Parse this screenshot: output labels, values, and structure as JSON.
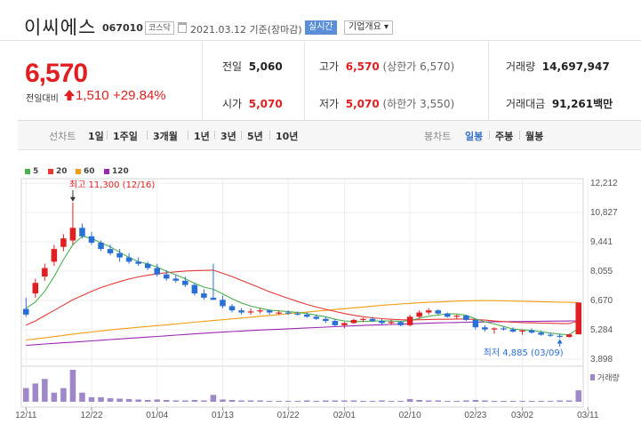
{
  "header": {
    "name": "이씨에스",
    "code": "067010",
    "market": "코스닥",
    "date": "2021.03.12 기준(장마감)",
    "realtime_label": "실시간",
    "overview_label": "기업개요 ▾"
  },
  "price": {
    "current": "6,570",
    "change_label": "전일대비",
    "change_value": "1,510",
    "change_pct": "+29.84%"
  },
  "stats": {
    "prev_close_label": "전일",
    "prev_close": "5,060",
    "high_label": "고가",
    "high": "6,570",
    "high_sub": "(상한가 6,570)",
    "volume_label": "거래량",
    "volume": "14,697,947",
    "open_label": "시가",
    "open": "5,070",
    "low_label": "저가",
    "low": "5,070",
    "low_sub": "(하한가 3,550)",
    "amount_label": "거래대금",
    "amount": "91,261",
    "amount_unit": "백만"
  },
  "period_bar": {
    "line_label": "선차트",
    "line_periods": [
      "1일",
      "1주일",
      "3개월",
      "1년",
      "3년",
      "5년",
      "10년"
    ],
    "candle_label": "봉차트",
    "candle_periods": [
      "일봉",
      "주봉",
      "월봉"
    ],
    "active_candle": "일봉"
  },
  "colors": {
    "up": "#e01f22",
    "down": "#2a6fd6",
    "ma5": "#4caf50",
    "ma20": "#e53935",
    "ma60": "#f39c12",
    "ma120": "#9c27b0",
    "volume": "#9e88c9"
  },
  "chart_data": {
    "type": "candlestick",
    "legend": [
      "5",
      "20",
      "60",
      "120"
    ],
    "y_ticks": [
      "12,212",
      "10,827",
      "9,441",
      "8,055",
      "6,670",
      "5,284",
      "3,898"
    ],
    "ylim": [
      3898,
      12212
    ],
    "x_ticks": [
      {
        "label": "12/11",
        "i": 0
      },
      {
        "label": "12/22",
        "i": 7
      },
      {
        "label": "01/04",
        "i": 14
      },
      {
        "label": "01/13",
        "i": 21
      },
      {
        "label": "01/22",
        "i": 28
      },
      {
        "label": "02/01",
        "i": 34
      },
      {
        "label": "02/10",
        "i": 41
      },
      {
        "label": "02/23",
        "i": 48
      },
      {
        "label": "03/02",
        "i": 53
      },
      {
        "label": "03/11",
        "i": 60
      }
    ],
    "volume_label": "거래량",
    "max_annotation": "최고 11,300 (12/16)",
    "min_annotation": "최저 4,885 (03/09)",
    "candles": [
      [
        6270,
        6800,
        5900,
        6000
      ],
      [
        7000,
        7700,
        6800,
        7500
      ],
      [
        7800,
        8400,
        7600,
        8200
      ],
      [
        8500,
        9300,
        8300,
        9100
      ],
      [
        9200,
        9800,
        9000,
        9600
      ],
      [
        9500,
        11300,
        9300,
        10100
      ],
      [
        10100,
        10300,
        9600,
        9700
      ],
      [
        9700,
        9900,
        9300,
        9400
      ],
      [
        9400,
        9500,
        9000,
        9100
      ],
      [
        9100,
        9300,
        8800,
        8900
      ],
      [
        8900,
        9100,
        8500,
        8700
      ],
      [
        8700,
        8900,
        8400,
        8500
      ],
      [
        8500,
        8700,
        8300,
        8400
      ],
      [
        8400,
        8500,
        8100,
        8200
      ],
      [
        8200,
        8400,
        7800,
        7900
      ],
      [
        7900,
        8100,
        7600,
        7700
      ],
      [
        7700,
        7900,
        7500,
        7600
      ],
      [
        7600,
        7800,
        7300,
        7400
      ],
      [
        7400,
        7500,
        6900,
        7000
      ],
      [
        7000,
        7200,
        6700,
        6800
      ],
      [
        6800,
        8400,
        6700,
        6700
      ],
      [
        6700,
        6900,
        6300,
        6400
      ],
      [
        6400,
        6500,
        6100,
        6200
      ],
      [
        6200,
        6300,
        6000,
        6100
      ],
      [
        6100,
        6300,
        6000,
        6150
      ],
      [
        6150,
        6300,
        6050,
        6200
      ],
      [
        6200,
        6250,
        6000,
        6100
      ],
      [
        6100,
        6200,
        6000,
        6100
      ],
      [
        6100,
        6200,
        6000,
        6050
      ],
      [
        6050,
        6150,
        5950,
        6000
      ],
      [
        6000,
        6100,
        5850,
        5900
      ],
      [
        5900,
        6000,
        5750,
        5800
      ],
      [
        5800,
        5900,
        5600,
        5700
      ],
      [
        5700,
        5800,
        5450,
        5500
      ],
      [
        5500,
        5650,
        5350,
        5600
      ],
      [
        5600,
        5800,
        5550,
        5750
      ],
      [
        5750,
        5850,
        5650,
        5800
      ],
      [
        5800,
        5900,
        5650,
        5700
      ],
      [
        5700,
        5800,
        5500,
        5600
      ],
      [
        5600,
        5750,
        5500,
        5650
      ],
      [
        5650,
        5700,
        5450,
        5500
      ],
      [
        5500,
        6000,
        5450,
        5900
      ],
      [
        5900,
        6200,
        5800,
        6100
      ],
      [
        6100,
        6300,
        6000,
        6200
      ],
      [
        6200,
        6250,
        6000,
        6050
      ],
      [
        6050,
        6100,
        5850,
        5900
      ],
      [
        5900,
        6000,
        5800,
        5950
      ],
      [
        5950,
        6000,
        5700,
        5750
      ],
      [
        5750,
        5800,
        5300,
        5400
      ],
      [
        5400,
        5500,
        5200,
        5300
      ],
      [
        5300,
        5400,
        5100,
        5350
      ],
      [
        5350,
        5450,
        5250,
        5300
      ],
      [
        5300,
        5400,
        5150,
        5200
      ],
      [
        5200,
        5300,
        5050,
        5250
      ],
      [
        5250,
        5350,
        5100,
        5150
      ],
      [
        5150,
        5250,
        5000,
        5050
      ],
      [
        5050,
        5150,
        4950,
        5000
      ],
      [
        5000,
        5100,
        4885,
        4950
      ],
      [
        4950,
        5100,
        4900,
        5060
      ],
      [
        5070,
        6570,
        5070,
        6570
      ]
    ],
    "volumes": [
      3,
      4,
      5,
      2,
      3,
      7,
      2,
      1,
      1,
      0.8,
      0.7,
      0.6,
      0.5,
      0.4,
      0.5,
      0.4,
      0.3,
      0.3,
      0.4,
      0.3,
      1.5,
      0.5,
      0.4,
      0.3,
      0.3,
      0.3,
      0.2,
      0.2,
      0.2,
      0.2,
      0.3,
      0.2,
      0.3,
      0.3,
      0.3,
      0.3,
      0.2,
      0.2,
      0.3,
      0.2,
      0.2,
      0.6,
      0.4,
      0.3,
      0.3,
      0.2,
      0.2,
      0.3,
      0.4,
      0.3,
      0.2,
      0.2,
      0.2,
      0.2,
      0.2,
      0.2,
      0.2,
      0.3,
      0.3,
      2.5
    ],
    "ma5": [
      6300,
      6600,
      7100,
      7800,
      8600,
      9300,
      9700,
      9600,
      9400,
      9200,
      8950,
      8700,
      8500,
      8400,
      8250,
      8050,
      7880,
      7700,
      7480,
      7300,
      7200,
      6980,
      6750,
      6550,
      6400,
      6300,
      6210,
      6180,
      6140,
      6100,
      6050,
      5970,
      5900,
      5780,
      5700,
      5670,
      5680,
      5690,
      5700,
      5700,
      5680,
      5720,
      5830,
      5920,
      5980,
      6040,
      6030,
      5970,
      5800,
      5660,
      5560,
      5440,
      5320,
      5280,
      5260,
      5190,
      5130,
      5080,
      5050,
      5350
    ],
    "ma20": [
      5500,
      5700,
      5950,
      6200,
      6450,
      6700,
      6900,
      7100,
      7280,
      7420,
      7560,
      7680,
      7780,
      7860,
      7920,
      7980,
      8020,
      8060,
      8080,
      8090,
      8100,
      7950,
      7800,
      7620,
      7440,
      7260,
      7080,
      6920,
      6770,
      6620,
      6480,
      6360,
      6250,
      6150,
      6050,
      5970,
      5900,
      5850,
      5810,
      5780,
      5760,
      5750,
      5760,
      5770,
      5780,
      5780,
      5790,
      5790,
      5770,
      5740,
      5700,
      5670,
      5640,
      5620,
      5610,
      5600,
      5590,
      5580,
      5575,
      5700
    ],
    "ma60": [
      4800,
      4850,
      4900,
      4960,
      5020,
      5080,
      5130,
      5180,
      5230,
      5280,
      5320,
      5360,
      5400,
      5440,
      5480,
      5520,
      5560,
      5600,
      5640,
      5680,
      5720,
      5760,
      5800,
      5840,
      5880,
      5920,
      5960,
      6000,
      6040,
      6080,
      6120,
      6160,
      6200,
      6240,
      6280,
      6320,
      6360,
      6400,
      6440,
      6470,
      6500,
      6530,
      6560,
      6580,
      6600,
      6620,
      6640,
      6650,
      6660,
      6660,
      6660,
      6650,
      6640,
      6630,
      6620,
      6610,
      6600,
      6590,
      6580,
      6570
    ],
    "ma120": [
      4550,
      4580,
      4610,
      4640,
      4670,
      4700,
      4730,
      4760,
      4790,
      4820,
      4850,
      4880,
      4910,
      4940,
      4970,
      5000,
      5030,
      5060,
      5090,
      5120,
      5150,
      5175,
      5200,
      5225,
      5250,
      5270,
      5290,
      5310,
      5330,
      5350,
      5370,
      5390,
      5410,
      5430,
      5450,
      5470,
      5490,
      5505,
      5520,
      5535,
      5550,
      5565,
      5580,
      5595,
      5610,
      5620,
      5630,
      5640,
      5650,
      5655,
      5660,
      5665,
      5670,
      5675,
      5680,
      5685,
      5690,
      5695,
      5700,
      5705
    ]
  }
}
